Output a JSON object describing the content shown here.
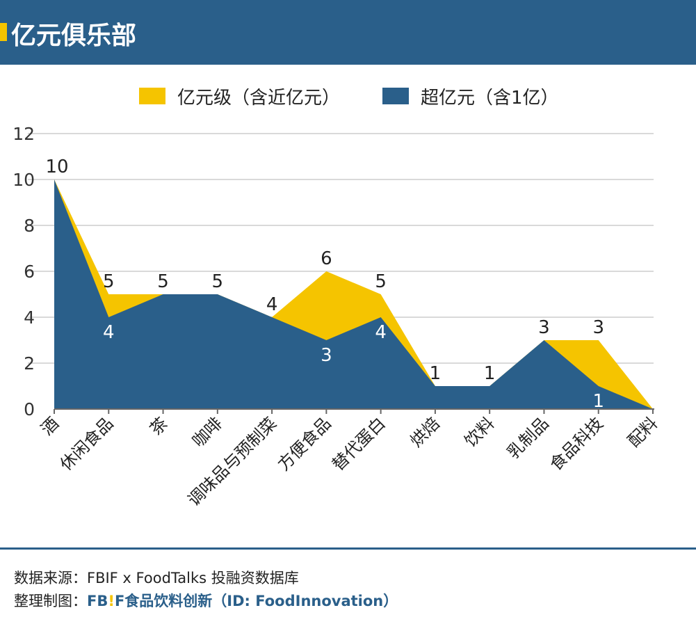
{
  "header": {
    "title": "亿元俱乐部"
  },
  "footer": {
    "source": "数据来源：FBIF x FoodTalks 投融资数据库",
    "maker_label": "整理制图：",
    "maker_logo_f": "FB",
    "maker_logo_bang": "!",
    "maker_logo_end": "F",
    "maker_name": "食品饮料创新（ID: FoodInnovation）"
  },
  "colors": {
    "brand_blue": "#2a5f8a",
    "yellow": "#f5c400"
  },
  "chart_data": {
    "type": "area",
    "categories": [
      "酒",
      "休闲食品",
      "茶",
      "咖啡",
      "调味品与预制菜",
      "方便食品",
      "替代蛋白",
      "烘焙",
      "饮料",
      "乳制品",
      "食品科技",
      "配料"
    ],
    "series": [
      {
        "name": "亿元级（含近亿元）",
        "color": "#f5c400",
        "values": [
          10,
          5,
          5,
          5,
          4,
          6,
          5,
          1,
          1,
          3,
          3,
          0
        ],
        "labels": [
          "10",
          "5",
          "5",
          "5",
          "4",
          "6",
          "5",
          "1",
          "1",
          "3",
          "3",
          ""
        ]
      },
      {
        "name": "超亿元（含1亿）",
        "color": "#2a5f8a",
        "values": [
          10,
          4,
          5,
          5,
          4,
          3,
          4,
          1,
          1,
          3,
          1,
          0
        ],
        "labels": [
          "",
          "4",
          "",
          "",
          "",
          "3",
          "4",
          "",
          "",
          "",
          "1",
          ""
        ]
      }
    ],
    "ylim": [
      0,
      12
    ],
    "yticks": [
      0,
      2,
      4,
      6,
      8,
      10,
      12
    ],
    "grid": true,
    "legend": "top-center"
  }
}
